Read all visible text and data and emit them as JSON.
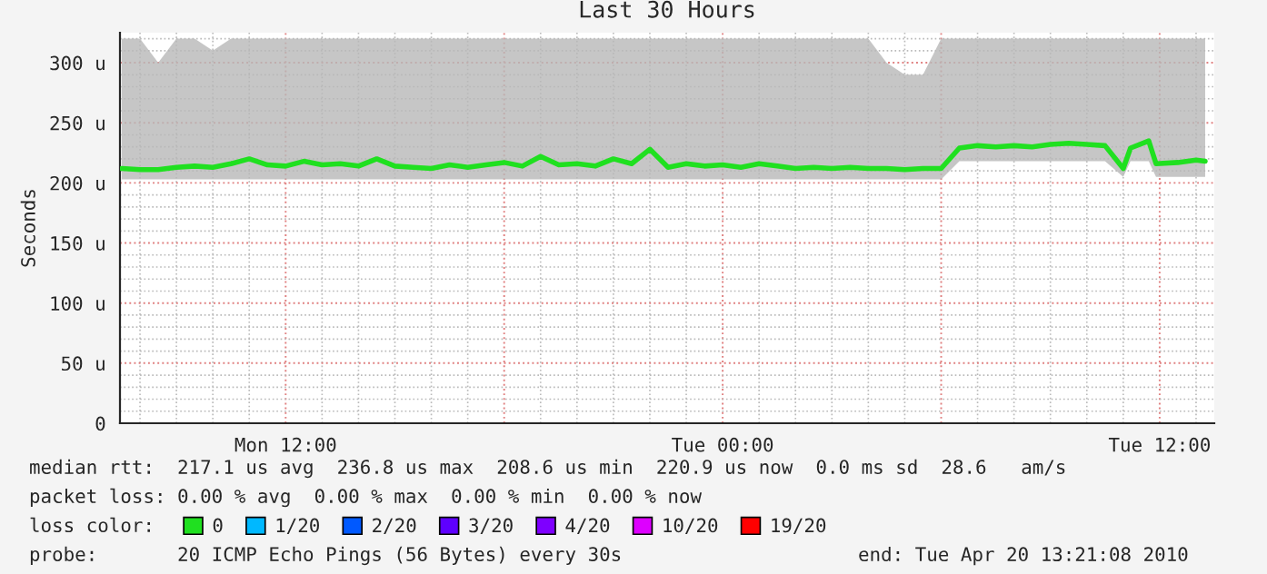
{
  "chart_data": {
    "type": "line",
    "title": "Last 30 Hours",
    "ylabel": "Seconds",
    "x": [
      "2010-04-19T07:30",
      "2010-04-19T08:00",
      "2010-04-19T08:30",
      "2010-04-19T09:00",
      "2010-04-19T09:30",
      "2010-04-19T10:00",
      "2010-04-19T10:30",
      "2010-04-19T11:00",
      "2010-04-19T11:30",
      "2010-04-19T12:00",
      "2010-04-19T12:30",
      "2010-04-19T13:00",
      "2010-04-19T13:30",
      "2010-04-19T14:00",
      "2010-04-19T14:30",
      "2010-04-19T15:00",
      "2010-04-19T15:30",
      "2010-04-19T16:00",
      "2010-04-19T16:30",
      "2010-04-19T17:00",
      "2010-04-19T17:30",
      "2010-04-19T18:00",
      "2010-04-19T18:30",
      "2010-04-19T19:00",
      "2010-04-19T19:30",
      "2010-04-19T20:00",
      "2010-04-19T20:30",
      "2010-04-19T21:00",
      "2010-04-19T21:30",
      "2010-04-19T22:00",
      "2010-04-19T22:30",
      "2010-04-19T23:00",
      "2010-04-19T23:30",
      "2010-04-20T00:00",
      "2010-04-20T00:30",
      "2010-04-20T01:00",
      "2010-04-20T01:30",
      "2010-04-20T02:00",
      "2010-04-20T02:30",
      "2010-04-20T03:00",
      "2010-04-20T03:30",
      "2010-04-20T04:00",
      "2010-04-20T04:30",
      "2010-04-20T05:00",
      "2010-04-20T05:30",
      "2010-04-20T06:00",
      "2010-04-20T06:30",
      "2010-04-20T07:00",
      "2010-04-20T07:30",
      "2010-04-20T08:00",
      "2010-04-20T08:30",
      "2010-04-20T09:00",
      "2010-04-20T09:30",
      "2010-04-20T10:00",
      "2010-04-20T10:30",
      "2010-04-20T11:00",
      "2010-04-20T11:12",
      "2010-04-20T11:42",
      "2010-04-20T11:54",
      "2010-04-20T12:30",
      "2010-04-20T13:00",
      "2010-04-20T13:15"
    ],
    "series": [
      {
        "name": "0",
        "color": "#20e020",
        "values": [
          212,
          211,
          211,
          213,
          214,
          213,
          216,
          220,
          215,
          214,
          218,
          215,
          216,
          214,
          220,
          214,
          213,
          212,
          215,
          213,
          215,
          217,
          214,
          222,
          215,
          216,
          214,
          220,
          216,
          228,
          213,
          216,
          214,
          215,
          213,
          216,
          214,
          212,
          213,
          212,
          213,
          212,
          212,
          211,
          212,
          212,
          229,
          231,
          230,
          231,
          230,
          232,
          233,
          232,
          231,
          212,
          229,
          235,
          216,
          217,
          219,
          218
        ],
        "lower": [
          203,
          203,
          203,
          203,
          203,
          203,
          203,
          203,
          203,
          203,
          203,
          203,
          203,
          203,
          203,
          203,
          203,
          203,
          203,
          203,
          203,
          203,
          203,
          203,
          203,
          203,
          203,
          203,
          203,
          203,
          203,
          203,
          203,
          203,
          203,
          203,
          203,
          203,
          203,
          203,
          203,
          203,
          203,
          203,
          203,
          203,
          218,
          218,
          218,
          218,
          218,
          218,
          218,
          218,
          218,
          205,
          218,
          218,
          205,
          205,
          205,
          205
        ],
        "upper": [
          320,
          320,
          300,
          320,
          320,
          310,
          320,
          320,
          320,
          320,
          320,
          320,
          320,
          320,
          320,
          320,
          320,
          320,
          320,
          320,
          320,
          320,
          320,
          320,
          320,
          320,
          320,
          320,
          320,
          320,
          320,
          320,
          320,
          320,
          320,
          320,
          320,
          320,
          320,
          320,
          320,
          320,
          300,
          290,
          290,
          320,
          320,
          320,
          320,
          320,
          320,
          320,
          320,
          320,
          320,
          320,
          320,
          320,
          320,
          320,
          320,
          320
        ]
      },
      {
        "name": "1/20",
        "color": "#00b8ff",
        "values": [
          null,
          null,
          null,
          null,
          null,
          null,
          null,
          null,
          null,
          null,
          null,
          null,
          null,
          null,
          null,
          null,
          null,
          null,
          null,
          null,
          null,
          null,
          null,
          null,
          null,
          null,
          null,
          null,
          null,
          null,
          null,
          null,
          null,
          null,
          null,
          null,
          null,
          null,
          null,
          null,
          null,
          null,
          null,
          null,
          null,
          null,
          null,
          null,
          null,
          null,
          null,
          null,
          null,
          null,
          null,
          null,
          null,
          null,
          null,
          null,
          null,
          null
        ]
      },
      {
        "name": "2/20",
        "color": "#0059ff",
        "values": [
          null,
          null,
          null,
          null,
          null,
          null,
          null,
          null,
          null,
          null,
          null,
          null,
          null,
          null,
          null,
          null,
          null,
          null,
          null,
          null,
          null,
          null,
          null,
          null,
          null,
          null,
          null,
          null,
          null,
          null,
          null,
          null,
          null,
          null,
          null,
          null,
          null,
          null,
          null,
          null,
          null,
          null,
          null,
          null,
          null,
          null,
          null,
          null,
          null,
          null,
          null,
          null,
          null,
          null,
          null,
          null,
          null,
          null,
          null,
          null,
          null,
          null
        ]
      },
      {
        "name": "3/20",
        "color": "#5e00ff",
        "values": [
          null,
          null,
          null,
          null,
          null,
          null,
          null,
          null,
          null,
          null,
          null,
          null,
          null,
          null,
          null,
          null,
          null,
          null,
          null,
          null,
          null,
          null,
          null,
          null,
          null,
          null,
          null,
          null,
          null,
          null,
          null,
          null,
          null,
          null,
          null,
          null,
          null,
          null,
          null,
          null,
          null,
          null,
          null,
          null,
          null,
          null,
          null,
          null,
          null,
          null,
          null,
          null,
          null,
          null,
          null,
          null,
          null,
          null,
          null,
          null,
          null,
          null
        ]
      },
      {
        "name": "4/20",
        "color": "#7e00ff",
        "values": [
          null,
          null,
          null,
          null,
          null,
          null,
          null,
          null,
          null,
          null,
          null,
          null,
          null,
          null,
          null,
          null,
          null,
          null,
          null,
          null,
          null,
          null,
          null,
          null,
          null,
          null,
          null,
          null,
          null,
          null,
          null,
          null,
          null,
          null,
          null,
          null,
          null,
          null,
          null,
          null,
          null,
          null,
          null,
          null,
          null,
          null,
          null,
          null,
          null,
          null,
          null,
          null,
          null,
          null,
          null,
          null,
          null,
          null,
          null,
          null,
          null,
          null
        ]
      },
      {
        "name": "10/20",
        "color": "#dd00ff",
        "values": [
          null,
          null,
          null,
          null,
          null,
          null,
          null,
          null,
          null,
          null,
          null,
          null,
          null,
          null,
          null,
          null,
          null,
          null,
          null,
          null,
          null,
          null,
          null,
          null,
          null,
          null,
          null,
          null,
          null,
          null,
          null,
          null,
          null,
          null,
          null,
          null,
          null,
          null,
          null,
          null,
          null,
          null,
          null,
          null,
          null,
          null,
          null,
          null,
          null,
          null,
          null,
          null,
          null,
          null,
          null,
          null,
          null,
          null,
          null,
          null,
          null,
          null
        ]
      },
      {
        "name": "19/20",
        "color": "#ff0000",
        "values": [
          null,
          null,
          null,
          null,
          null,
          null,
          null,
          null,
          null,
          null,
          null,
          null,
          null,
          null,
          null,
          null,
          null,
          null,
          null,
          null,
          null,
          null,
          null,
          null,
          null,
          null,
          null,
          null,
          null,
          null,
          null,
          null,
          null,
          null,
          null,
          null,
          null,
          null,
          null,
          null,
          null,
          null,
          null,
          null,
          null,
          null,
          null,
          null,
          null,
          null,
          null,
          null,
          null,
          null,
          null,
          null,
          null,
          null,
          null,
          null,
          null,
          null
        ]
      }
    ],
    "legend": "bottom",
    "legend_title": "loss color:",
    "xlim": [
      "2010-04-19T07:27",
      "2010-04-20T13:30"
    ],
    "xticks": [
      {
        "value": "2010-04-19T12:00",
        "label": "Mon 12:00"
      },
      {
        "value": "2010-04-19T18:00",
        "label": null
      },
      {
        "value": "2010-04-20T00:00",
        "label": "Tue 00:00"
      },
      {
        "value": "2010-04-20T06:00",
        "label": null
      },
      {
        "value": "2010-04-20T12:00",
        "label": "Tue 12:00"
      }
    ],
    "ylim": [
      0,
      325
    ],
    "yticks": [
      0,
      {
        "value": 50,
        "label": "50 u"
      },
      {
        "value": 100,
        "label": "100 u"
      },
      {
        "value": 150,
        "label": "150 u"
      },
      {
        "value": 200,
        "label": "200 u"
      },
      {
        "value": 250,
        "label": "250 u"
      },
      {
        "value": 300,
        "label": "300 u"
      }
    ],
    "grid": true,
    "annotations": [
      "median rtt:  217.1 us avg  236.8 us max  208.6 us min  220.9 us now  0.0 ms sd  28.6   am/s",
      "packet loss: 0.00 % avg  0.00 % max  0.00 % min  0.00 % now",
      "probe:       20 ICMP Echo Pings (56 Bytes) every 30s",
      "end: Tue Apr 20 13:21:08 2010"
    ]
  }
}
